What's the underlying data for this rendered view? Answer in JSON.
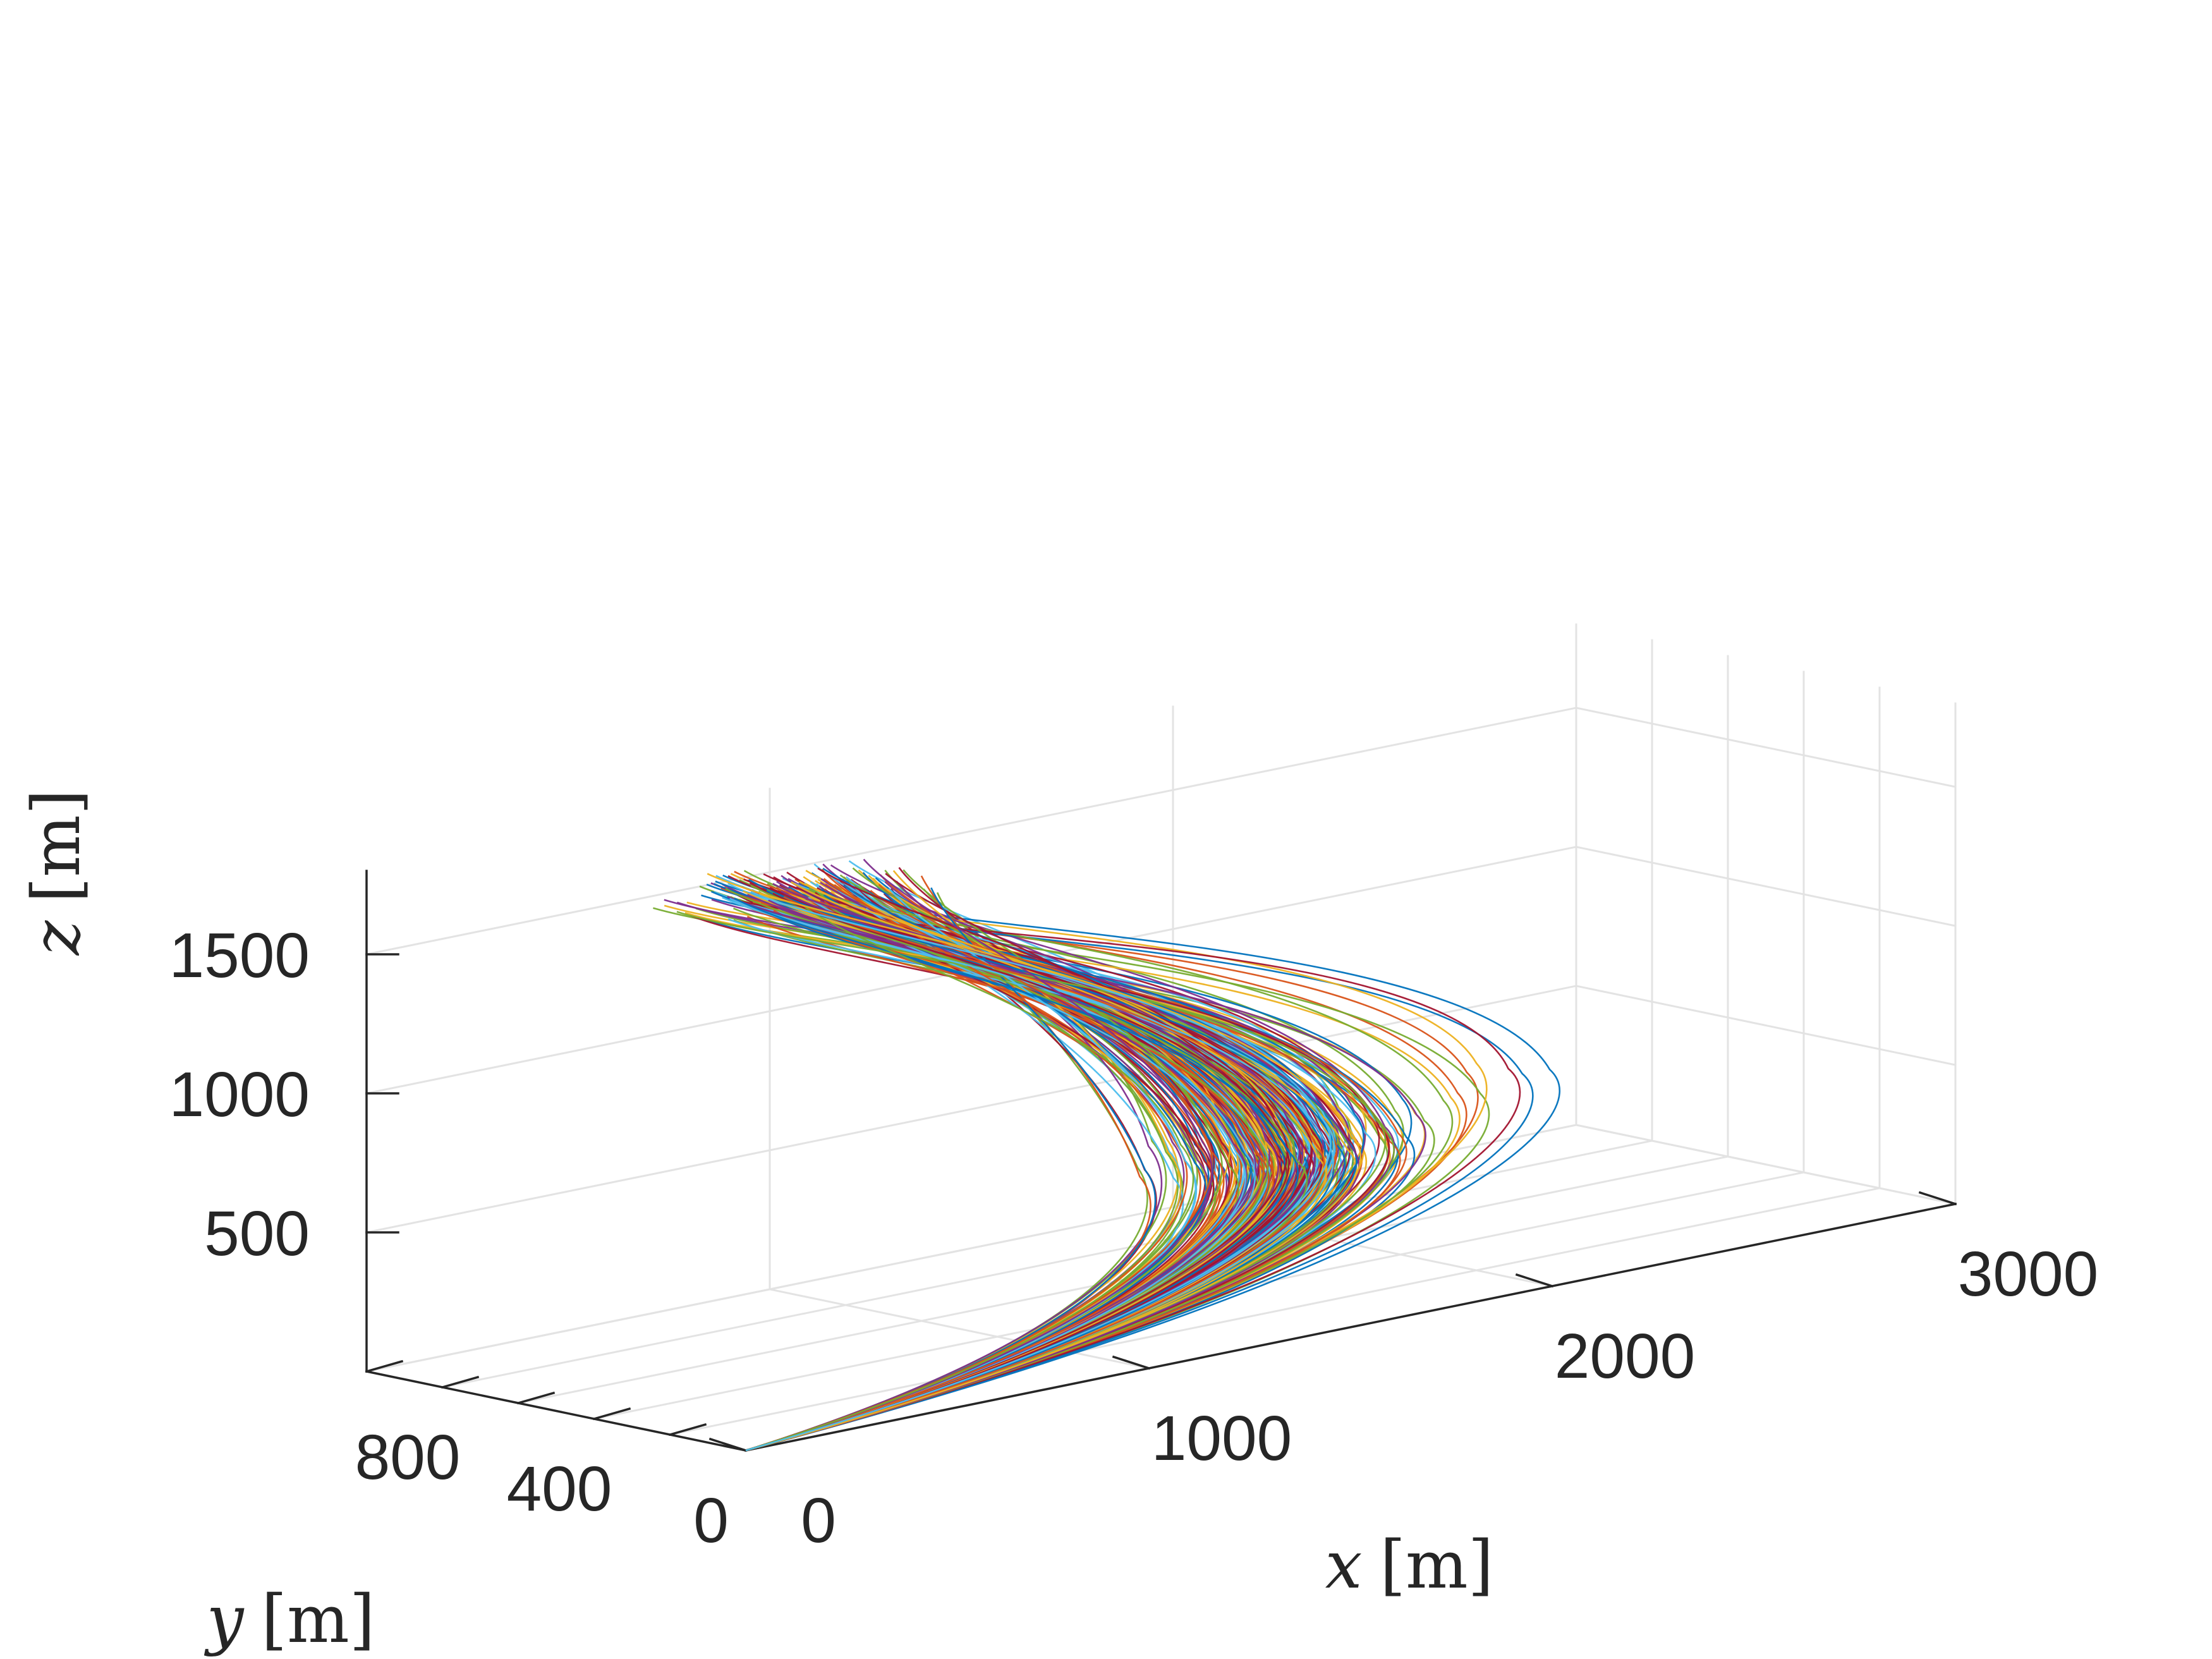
{
  "chart_data": {
    "type": "line3d",
    "title": "",
    "xlabel_var": "x",
    "ylabel_var": "y",
    "zlabel_var": "z",
    "unit_label": "[m]",
    "xlim": [
      0,
      3000
    ],
    "ylim": [
      0,
      1000
    ],
    "zlim": [
      0,
      1800
    ],
    "grid": true,
    "x_ticks": [
      {
        "value": 0,
        "label": "0"
      },
      {
        "value": 1000,
        "label": "1000"
      },
      {
        "value": 2000,
        "label": "2000"
      },
      {
        "value": 3000,
        "label": "3000"
      }
    ],
    "y_ticks": [
      {
        "value": 0,
        "label": "0"
      },
      {
        "value": 400,
        "label": "400"
      },
      {
        "value": 800,
        "label": "800"
      }
    ],
    "y_minor_ticks": [
      0,
      200,
      400,
      600,
      800,
      1000
    ],
    "z_ticks": [
      {
        "value": 500,
        "label": "500"
      },
      {
        "value": 1000,
        "label": "1000"
      },
      {
        "value": 1500,
        "label": "1500"
      }
    ],
    "series_colors": [
      "#0072BD",
      "#D95319",
      "#EDB120",
      "#7E2F8E",
      "#77AC30",
      "#4DBEEE",
      "#A2142F"
    ],
    "trajectory_count": 300,
    "trajectory_start": {
      "x": 0,
      "y": 0,
      "z": 0
    },
    "trajectory_approx_end_range": {
      "x": [
        400,
        1200
      ],
      "y": [
        500,
        900
      ],
      "z": [
        1400,
        1800
      ]
    },
    "trajectory_approx_turn_range": {
      "x": [
        1300,
        2300
      ],
      "z": [
        300,
        600
      ]
    }
  }
}
